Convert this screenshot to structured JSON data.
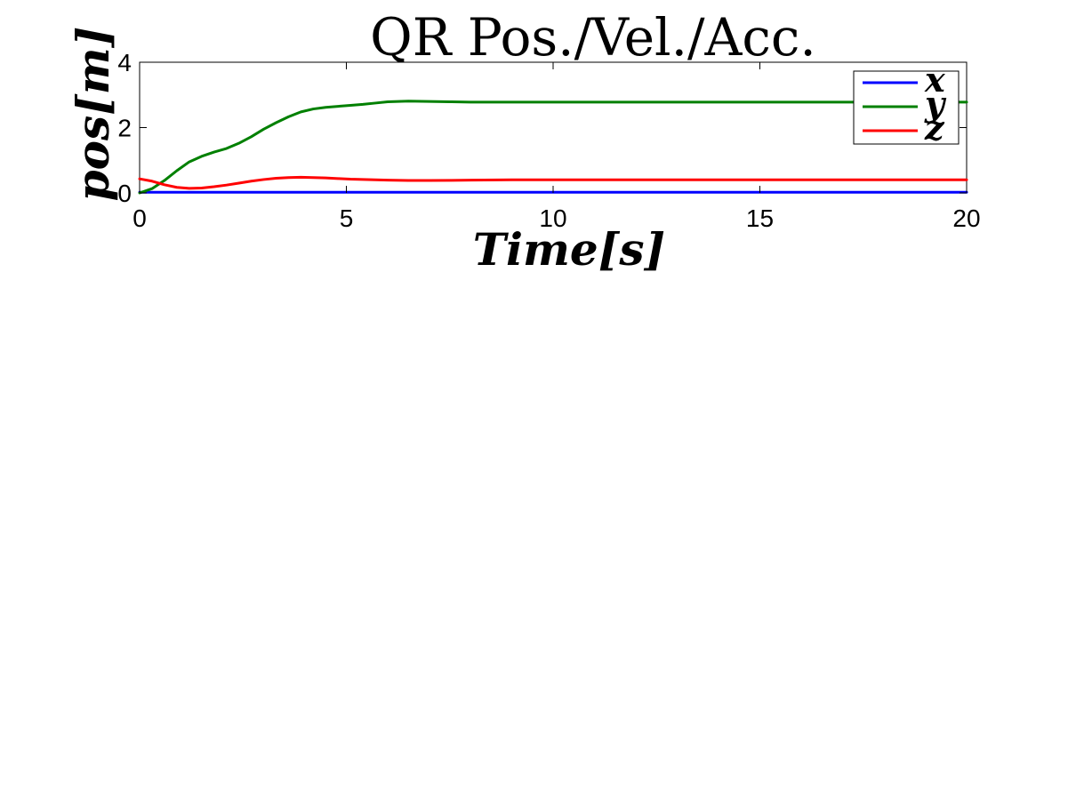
{
  "chart_data": {
    "type": "line",
    "title": "QR Pos./Vel./Acc.",
    "xlabel": "Time[s]",
    "ylabel": "pos[m]",
    "xlim": [
      0,
      20
    ],
    "ylim": [
      0,
      4
    ],
    "xticks": [
      0,
      5,
      10,
      15,
      20
    ],
    "yticks": [
      0,
      2,
      4
    ],
    "grid": false,
    "legend_position": "top-right",
    "series": [
      {
        "name": "x",
        "color": "#0000ff",
        "x": [
          0,
          20
        ],
        "y": [
          0.02,
          0.02
        ]
      },
      {
        "name": "y",
        "color": "#008000",
        "x": [
          0,
          0.3,
          0.6,
          0.9,
          1.2,
          1.5,
          1.8,
          2.1,
          2.4,
          2.7,
          3.0,
          3.3,
          3.6,
          3.9,
          4.2,
          4.5,
          4.8,
          5.1,
          5.4,
          5.7,
          6.0,
          6.5,
          7.0,
          7.5,
          8.0,
          9.0,
          10.0,
          12.0,
          15.0,
          20.0
        ],
        "y": [
          0.0,
          0.13,
          0.38,
          0.68,
          0.95,
          1.12,
          1.25,
          1.36,
          1.52,
          1.72,
          1.95,
          2.15,
          2.33,
          2.48,
          2.57,
          2.62,
          2.65,
          2.68,
          2.71,
          2.75,
          2.79,
          2.81,
          2.8,
          2.79,
          2.78,
          2.78,
          2.78,
          2.78,
          2.78,
          2.78
        ]
      },
      {
        "name": "z",
        "color": "#ff0000",
        "x": [
          0,
          0.3,
          0.6,
          0.9,
          1.2,
          1.5,
          1.8,
          2.1,
          2.4,
          2.7,
          3.0,
          3.3,
          3.6,
          3.9,
          4.2,
          4.5,
          4.8,
          5.1,
          5.4,
          5.7,
          6.0,
          6.5,
          7.0,
          8.0,
          9.0,
          10.0,
          12.0,
          15.0,
          20.0
        ],
        "y": [
          0.43,
          0.36,
          0.25,
          0.17,
          0.14,
          0.15,
          0.19,
          0.24,
          0.3,
          0.36,
          0.41,
          0.45,
          0.47,
          0.48,
          0.47,
          0.46,
          0.44,
          0.42,
          0.41,
          0.4,
          0.39,
          0.38,
          0.38,
          0.39,
          0.4,
          0.4,
          0.4,
          0.4,
          0.4
        ]
      }
    ]
  }
}
